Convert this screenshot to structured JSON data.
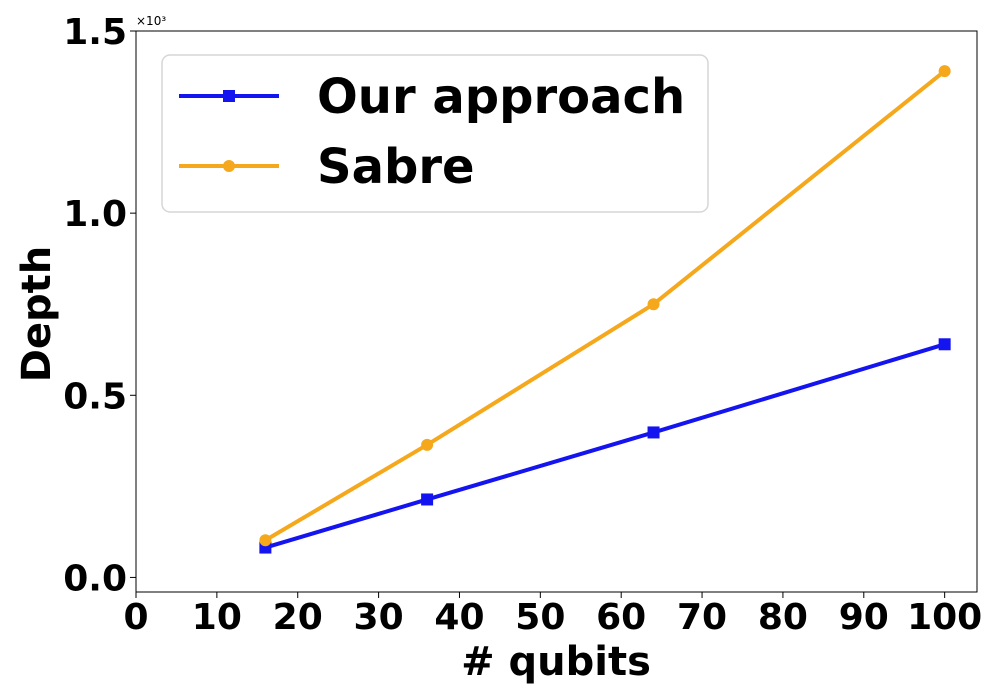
{
  "chart_data": {
    "type": "line",
    "xlabel": "# qubits",
    "ylabel": "Depth",
    "y_multiplier": "×10³",
    "xlim": [
      0,
      104
    ],
    "ylim": [
      -0.04,
      1.5
    ],
    "xticks": [
      0,
      10,
      20,
      30,
      40,
      50,
      60,
      70,
      80,
      90,
      100
    ],
    "yticks": [
      0.0,
      0.5,
      1.0,
      1.5
    ],
    "ytick_labels": [
      "0.0",
      "0.5",
      "1.0",
      "1.5"
    ],
    "grid": false,
    "legend_position": "upper-left",
    "series": [
      {
        "name": "Our approach",
        "color": "#1414f0",
        "marker": "square",
        "x": [
          16,
          36,
          64,
          100
        ],
        "y": [
          0.082,
          0.214,
          0.398,
          0.64
        ]
      },
      {
        "name": "Sabre",
        "color": "#f5a81c",
        "marker": "circle",
        "x": [
          16,
          36,
          64,
          100
        ],
        "y": [
          0.102,
          0.364,
          0.75,
          1.39
        ]
      }
    ]
  }
}
